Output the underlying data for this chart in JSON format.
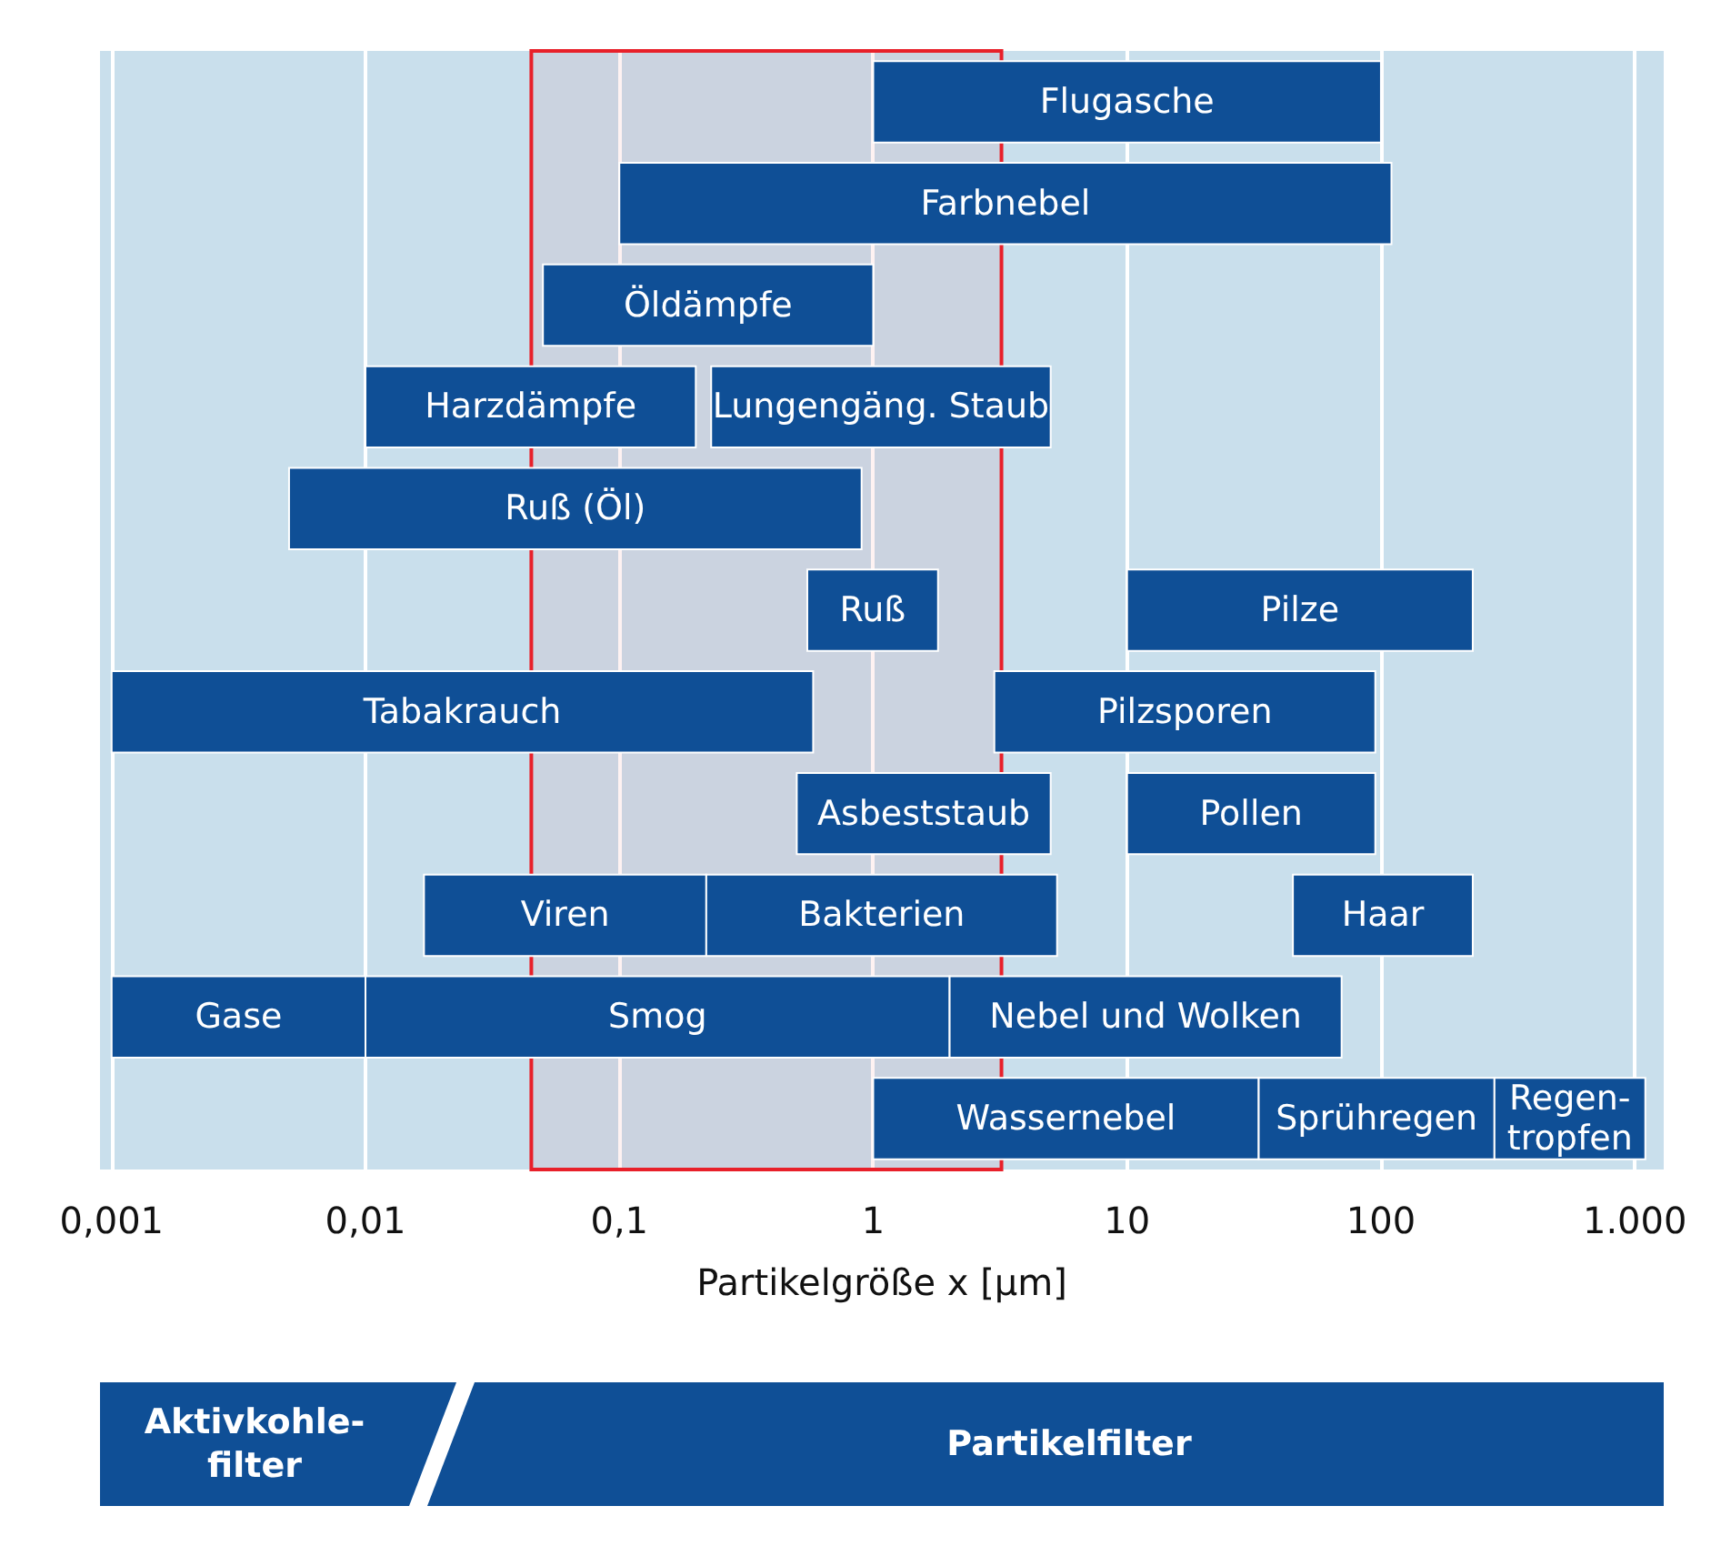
{
  "chart_data": {
    "type": "bar",
    "orientation": "horizontal",
    "log": "x",
    "xlabel": "Partikelgröße x [µm]",
    "categories": [
      null,
      null,
      null,
      null,
      null,
      null,
      null,
      null,
      null,
      null,
      null
    ],
    "series": [
      {
        "color": "#0f4f96",
        "base": [
          1,
          0.1,
          0.05,
          0.01,
          0.005,
          0.55,
          0.001,
          0.5,
          0.017,
          0.001,
          1
        ],
        "values": [
          99,
          109.9,
          0.95,
          0.19,
          0.895,
          1.25,
          0.579,
          4.5,
          0.203,
          0.009,
          32
        ],
        "value_labels": [
          "Flugasche",
          "Farbnebel",
          "Öldämpfe",
          "Harzdämpfe",
          "Ruß (Öl)",
          "Ruß",
          "Tabakrauch",
          "Asbeststaub",
          "Viren",
          "Gase",
          "Wassernebel"
        ]
      },
      {
        "color": "#0f4f96",
        "base": [
          null,
          null,
          null,
          0.23,
          null,
          10,
          3,
          10,
          0.22,
          0.01,
          33
        ],
        "values": [
          null,
          null,
          null,
          4.77,
          null,
          220,
          92,
          85,
          5.08,
          1.99,
          247
        ],
        "value_labels": [
          null,
          null,
          null,
          "Lungengäng. Staub",
          null,
          "Pilze",
          "Pilzsporen",
          "Pollen",
          "Bakterien",
          "Smog",
          "Sprühregen"
        ]
      },
      {
        "color": "#0f4f96",
        "base": [
          null,
          null,
          null,
          null,
          null,
          null,
          null,
          null,
          45,
          2,
          280
        ],
        "values": [
          null,
          null,
          null,
          null,
          null,
          null,
          null,
          null,
          185,
          68,
          820
        ],
        "value_labels": [
          null,
          null,
          null,
          null,
          null,
          null,
          null,
          null,
          "Haar",
          "Nebel und Wolken",
          "Regen-\ntropfen"
        ]
      }
    ],
    "xlim": [
      0.0009,
      1300
    ],
    "xticks": [
      {
        "value": 0.001,
        "label": "0,001"
      },
      {
        "value": 0.01,
        "label": "0,01"
      },
      {
        "value": 0.1,
        "label": "0,1"
      },
      1,
      10,
      100,
      {
        "value": 1000,
        "label": "1.000"
      }
    ],
    "grid": "x",
    "bands": [
      {
        "axis": "x",
        "from": 0.045,
        "to": 3.2,
        "color": "#e8202a"
      }
    ],
    "annotations": [
      "Aktivkohle-\nfilter",
      "Partikelfilter"
    ]
  }
}
